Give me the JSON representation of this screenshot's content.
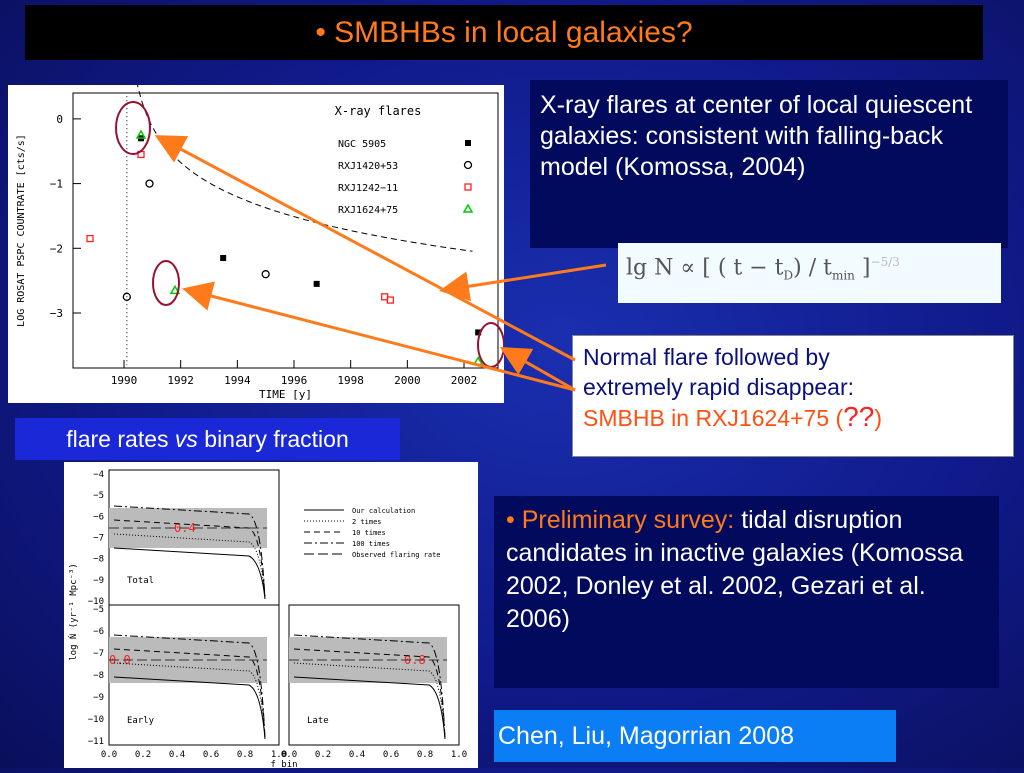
{
  "title": "• SMBHBs in local galaxies?",
  "xray_text": "X-ray flares at center of local quiescent galaxies: consistent with falling-back model (Komossa, 2004)",
  "formula": {
    "lhs": "lg N",
    "rhs": "∝ [ ( t − t",
    "sub": "D",
    "mid": ") / t",
    "sub2": "min",
    "close": "]",
    "exp": "−5/3"
  },
  "flare_note": {
    "line1": "Normal flare followed by",
    "line2": "extremely rapid disappear:",
    "highlight": "SMBHB in RXJ1624+75",
    "paren_open": " (",
    "qmarks": "??",
    "paren_close": ")"
  },
  "label_flare_rates": {
    "pre": "flare rates ",
    "em": "vs",
    "post": " binary fraction"
  },
  "survey": {
    "bullet": "• ",
    "head": "Preliminary survey:",
    "rest": " tidal disruption candidates in inactive galaxies (Komossa 2002, Donley et al. 2002, Gezari et al. 2006)"
  },
  "citation": "Chen, Liu, Magorrian  2008",
  "colors": {
    "orange": "#ff7a1a",
    "bg": "#101a8a",
    "circle": "#9a1030"
  },
  "chart_data": [
    {
      "type": "scatter",
      "title": "X-ray flares",
      "xlabel": "TIME [y]",
      "ylabel": "LOG ROSAT PSPC COUNTRATE [cts/s]",
      "xlim": [
        1988.2,
        2003.2
      ],
      "ylim": [
        -3.85,
        0.4
      ],
      "xticks": [
        "1990",
        "1992",
        "1994",
        "1996",
        "1998",
        "2000",
        "2002"
      ],
      "yticks": [
        "0",
        "−1",
        "−2",
        "−3"
      ],
      "series": [
        {
          "name": "NGC 5905",
          "marker": "square",
          "color": "#000000",
          "points": [
            [
              1990.6,
              -0.3
            ],
            [
              1993.5,
              -2.15
            ],
            [
              1996.8,
              -2.55
            ],
            [
              2002.5,
              -3.3
            ]
          ]
        },
        {
          "name": "RXJ1420+53",
          "marker": "circle",
          "color": "#000000",
          "points": [
            [
              1990.1,
              -2.75
            ],
            [
              1990.9,
              -1.0
            ],
            [
              1995.0,
              -2.4
            ]
          ]
        },
        {
          "name": "RXJ1242−11",
          "marker": "square-open",
          "color": "#ff2020",
          "points": [
            [
              1988.8,
              -1.85
            ],
            [
              1990.6,
              -0.55
            ],
            [
              1999.2,
              -2.75
            ],
            [
              1999.4,
              -2.8
            ]
          ]
        },
        {
          "name": "RXJ1624+75",
          "marker": "triangle",
          "color": "#00cc00",
          "points": [
            [
              1990.6,
              -0.25
            ],
            [
              1991.8,
              -2.65
            ],
            [
              2002.5,
              -3.75
            ]
          ]
        }
      ],
      "model_curve": "falling-back t^-5/3"
    },
    {
      "type": "line",
      "panels": [
        "Total",
        "Early",
        "Late"
      ],
      "xlabel": "f_bin",
      "ylabel": "log Ṅ (yr⁻¹ Mpc⁻³)",
      "xticks": [
        "0.0",
        "0.2",
        "0.4",
        "0.6",
        "0.8",
        "1.0"
      ],
      "yticks_top": [
        "−4",
        "−5",
        "−6",
        "−7",
        "−8",
        "−9",
        "−10"
      ],
      "yticks_bottom": [
        "−5",
        "−6",
        "−7",
        "−8",
        "−9",
        "−10",
        "−11"
      ],
      "legend": [
        "Our calculation",
        "2 times",
        "10 times",
        "100 times",
        "Observed flaring rate"
      ],
      "annotations": [
        "0.4",
        "0.0",
        "0.8"
      ]
    }
  ]
}
